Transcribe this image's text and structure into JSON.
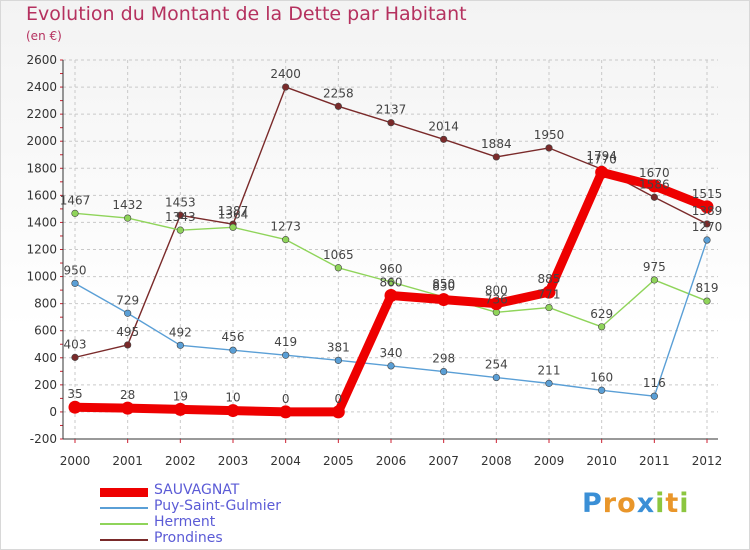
{
  "title": "Evolution du Montant de la Dette par Habitant",
  "unit": "(en €)",
  "brand": {
    "text": "Proxiti",
    "letter_colors": [
      "#3a8fd6",
      "#e9962a",
      "#e9962a",
      "#3a8fd6",
      "#8cc63f",
      "#e9962a",
      "#8cc63f"
    ]
  },
  "chart_data": {
    "type": "line",
    "x": [
      "2000",
      "2001",
      "2002",
      "2003",
      "2004",
      "2005",
      "2006",
      "2007",
      "2008",
      "2009",
      "2010",
      "2011",
      "2012"
    ],
    "ylim": [
      -200,
      2600
    ],
    "yticks": [
      -200,
      0,
      200,
      400,
      600,
      800,
      1000,
      1200,
      1400,
      1600,
      1800,
      2000,
      2200,
      2400,
      2600
    ],
    "grid": true,
    "legend_position": "bottom-left",
    "series": [
      {
        "name": "Prondines",
        "color": "#7a2a2a",
        "values": [
          403,
          495,
          1453,
          1387,
          2400,
          2258,
          2137,
          2014,
          1884,
          1950,
          1794,
          1586,
          1389
        ],
        "labels": [
          "403",
          "495",
          "1453",
          "1387",
          "2400",
          "2258",
          "2137",
          "2014",
          "1884",
          "1950",
          "1794",
          "1586",
          "1389"
        ]
      },
      {
        "name": "Herment",
        "color": "#8fd45a",
        "values": [
          1467,
          1432,
          1343,
          1364,
          1273,
          1065,
          960,
          850,
          736,
          771,
          629,
          975,
          819
        ],
        "labels": [
          "1467",
          "1432",
          "1343",
          "1364",
          "1273",
          "1065",
          "960",
          "850",
          "736",
          "771",
          "629",
          "975",
          "819"
        ]
      },
      {
        "name": "Puy-Saint-Gulmier",
        "color": "#5a9fd6",
        "values": [
          950,
          729,
          492,
          456,
          419,
          381,
          340,
          298,
          254,
          211,
          160,
          116,
          1270
        ],
        "labels": [
          "950",
          "729",
          "492",
          "456",
          "419",
          "381",
          "340",
          "298",
          "254",
          "211",
          "160",
          "116",
          "1270"
        ]
      },
      {
        "name": "SAUVAGNAT",
        "color": "#ee0000",
        "values": [
          35,
          28,
          19,
          10,
          0,
          0,
          860,
          830,
          800,
          885,
          1770,
          1670,
          1515
        ],
        "labels": [
          "35",
          "28",
          "19",
          "10",
          "0",
          "0",
          "860",
          "830",
          "800",
          "885",
          "1770",
          "1670",
          "1515"
        ]
      }
    ],
    "legend_order": [
      "SAUVAGNAT",
      "Puy-Saint-Gulmier",
      "Herment",
      "Prondines"
    ]
  }
}
